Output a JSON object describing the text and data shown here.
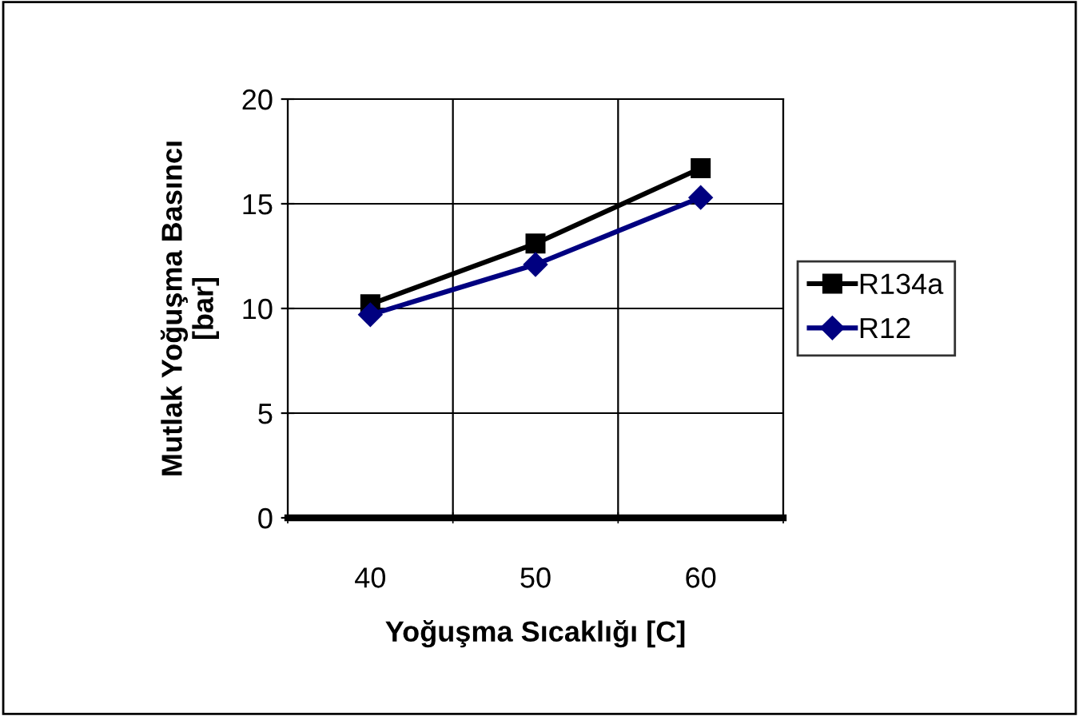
{
  "chart_data": {
    "type": "line",
    "xlabel": "Yoğuşma Sıcaklığı [C]",
    "ylabel": "Mutlak Yoğuşma Basıncı\n[bar]",
    "categories": [
      "40",
      "50",
      "60"
    ],
    "series": [
      {
        "name": "R134a",
        "color": "#000000",
        "marker": "square",
        "values": [
          10.2,
          13.1,
          16.7
        ]
      },
      {
        "name": "R12",
        "color": "#000080",
        "marker": "diamond",
        "values": [
          9.7,
          12.1,
          15.3
        ]
      }
    ],
    "ylim": [
      0,
      20
    ],
    "yticks": [
      0,
      5,
      10,
      15,
      20
    ],
    "grid": true,
    "legend": "right",
    "line_style": "solid"
  }
}
